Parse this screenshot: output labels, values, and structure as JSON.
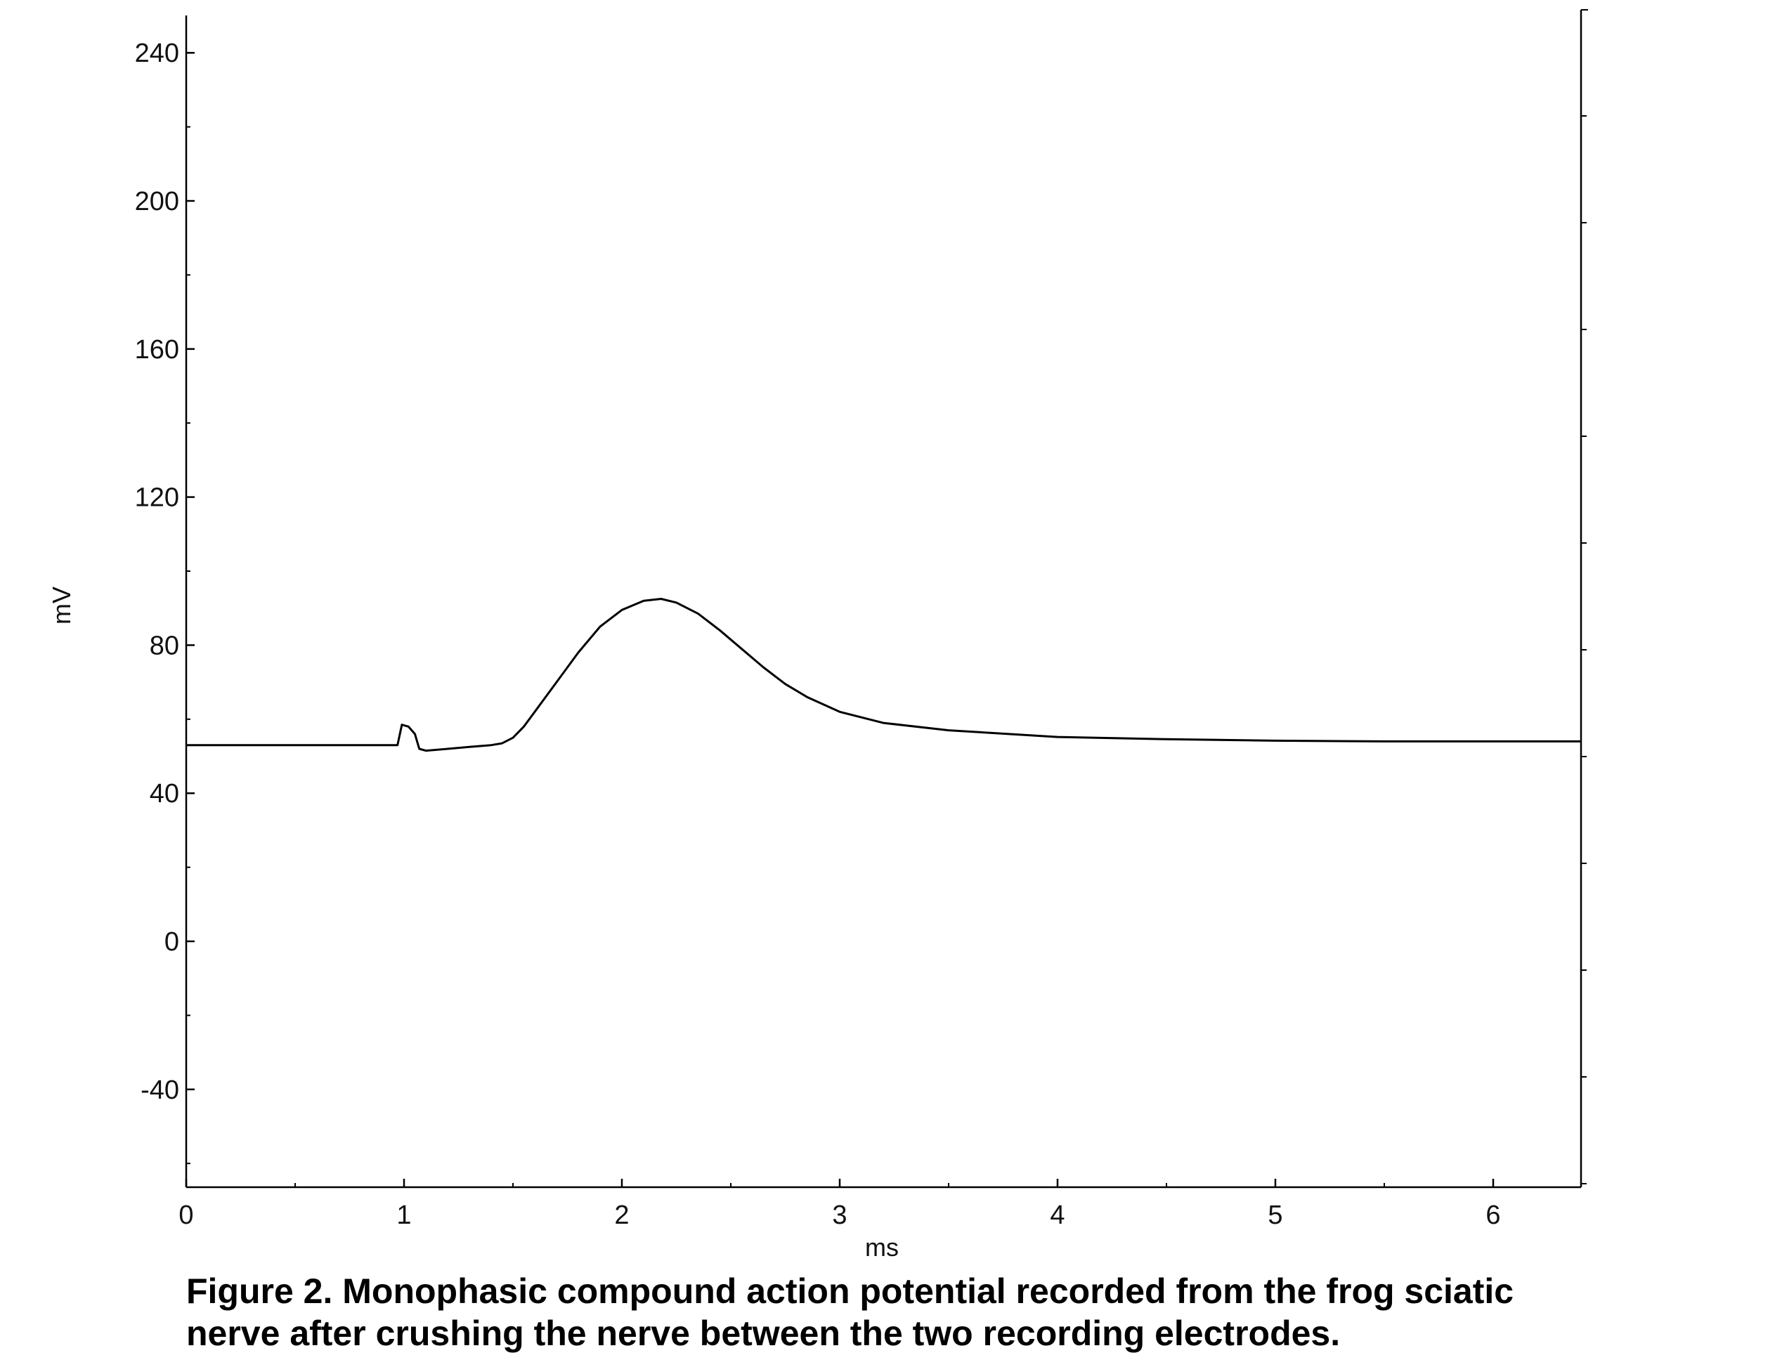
{
  "chart_data": {
    "type": "line",
    "xlabel": "ms",
    "ylabel": "mV",
    "xlim": [
      0,
      6.4
    ],
    "ylim": [
      -66,
      250
    ],
    "xticks": [
      0,
      1,
      2,
      3,
      4,
      5,
      6
    ],
    "yticks": [
      -40,
      0,
      40,
      80,
      120,
      160,
      200,
      240
    ],
    "x_tick_labels": [
      "0",
      "1",
      "2",
      "3",
      "4",
      "5",
      "6"
    ],
    "y_tick_labels": [
      "-40",
      "0",
      "40",
      "80",
      "120",
      "160",
      "200",
      "240"
    ],
    "grid": false,
    "series": [
      {
        "x": [
          0,
          0.5,
          0.97,
          0.99,
          1.02,
          1.05,
          1.07,
          1.1,
          1.2,
          1.3,
          1.4,
          1.45,
          1.5,
          1.55,
          1.6,
          1.7,
          1.8,
          1.9,
          2.0,
          2.1,
          2.18,
          2.25,
          2.35,
          2.45,
          2.55,
          2.65,
          2.75,
          2.85,
          3.0,
          3.2,
          3.5,
          4.0,
          4.5,
          5.0,
          5.5,
          6.0,
          6.4
        ],
        "y": [
          53,
          53,
          53,
          58.5,
          58,
          56,
          52,
          51.5,
          52,
          52.5,
          53,
          53.5,
          55,
          58,
          62,
          70,
          78,
          85,
          89.5,
          92,
          92.5,
          91.5,
          88.5,
          84,
          79,
          74,
          69.5,
          66,
          62,
          59,
          57,
          55.2,
          54.6,
          54.2,
          54,
          54,
          54
        ]
      }
    ]
  },
  "caption": {
    "line1": "Figure 2.  Monophasic compound action potential recorded from the frog sciatic",
    "line2": "nerve after crushing the nerve between the two recording electrodes."
  }
}
